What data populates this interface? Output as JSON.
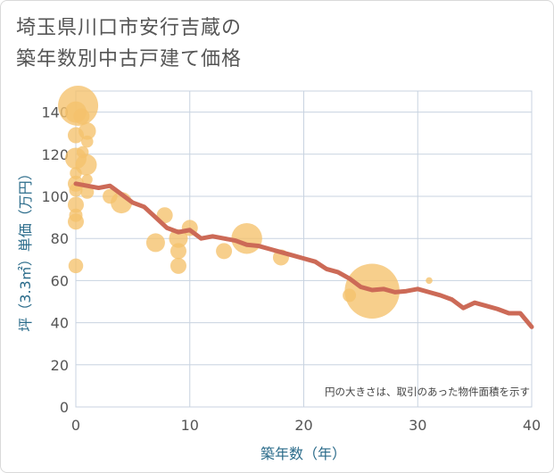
{
  "chart_data": {
    "type": "scatter",
    "title_lines": [
      "埼玉県川口市安行吉蔵の",
      "築年数別中古戸建て価格"
    ],
    "xlabel": "築年数（年）",
    "ylabel": "坪（3.3㎡）単価（万円）",
    "xlim": [
      0,
      40
    ],
    "ylim": [
      0,
      150
    ],
    "x_ticks": [
      0,
      10,
      20,
      30,
      40
    ],
    "y_ticks": [
      0,
      20,
      40,
      60,
      80,
      100,
      120,
      140
    ],
    "grid": true,
    "note": "円の大きさは、取引のあった物件面積を示す",
    "colors": {
      "bubble": "#f5c26b",
      "line": "#cc6a57",
      "grid": "#c8d3e0",
      "text": "#555555",
      "axis_title": "#2a6b8a"
    },
    "bubbles": [
      {
        "x": 0.2,
        "y": 143,
        "s": 3.0
      },
      {
        "x": 0.0,
        "y": 140,
        "s": 1.6
      },
      {
        "x": 0.5,
        "y": 138,
        "s": 1.2
      },
      {
        "x": 1.0,
        "y": 131,
        "s": 1.3
      },
      {
        "x": 0.0,
        "y": 129,
        "s": 1.2
      },
      {
        "x": 1.0,
        "y": 126,
        "s": 0.9
      },
      {
        "x": 0.0,
        "y": 118,
        "s": 1.6
      },
      {
        "x": 0.6,
        "y": 121,
        "s": 0.9
      },
      {
        "x": 0.9,
        "y": 115,
        "s": 1.6
      },
      {
        "x": 0.0,
        "y": 111,
        "s": 0.9
      },
      {
        "x": 0.0,
        "y": 106,
        "s": 1.2
      },
      {
        "x": 1.0,
        "y": 108,
        "s": 0.8
      },
      {
        "x": 0.0,
        "y": 103,
        "s": 1.0
      },
      {
        "x": 1.0,
        "y": 102,
        "s": 1.0
      },
      {
        "x": 0.0,
        "y": 96,
        "s": 1.2
      },
      {
        "x": 0.0,
        "y": 91,
        "s": 1.0
      },
      {
        "x": 0.0,
        "y": 88,
        "s": 1.2
      },
      {
        "x": 0.0,
        "y": 67,
        "s": 1.1
      },
      {
        "x": 3.0,
        "y": 100,
        "s": 1.1
      },
      {
        "x": 4.0,
        "y": 97,
        "s": 1.6
      },
      {
        "x": 7.0,
        "y": 78,
        "s": 1.4
      },
      {
        "x": 7.8,
        "y": 91,
        "s": 1.2
      },
      {
        "x": 9.0,
        "y": 80,
        "s": 1.4
      },
      {
        "x": 9.0,
        "y": 74,
        "s": 1.2
      },
      {
        "x": 9.0,
        "y": 67,
        "s": 1.2
      },
      {
        "x": 10.0,
        "y": 85,
        "s": 1.2
      },
      {
        "x": 13.0,
        "y": 74,
        "s": 1.2
      },
      {
        "x": 15.0,
        "y": 80,
        "s": 2.3
      },
      {
        "x": 18.0,
        "y": 71,
        "s": 1.2
      },
      {
        "x": 24.0,
        "y": 53,
        "s": 1.0
      },
      {
        "x": 26.0,
        "y": 55,
        "s": 4.1
      },
      {
        "x": 31.0,
        "y": 60,
        "s": 0.5
      }
    ],
    "line": {
      "x": [
        0,
        1,
        2,
        3,
        4,
        5,
        6,
        7,
        8,
        9,
        10,
        11,
        12,
        13,
        14,
        15,
        16,
        17,
        18,
        19,
        20,
        21,
        22,
        23,
        24,
        25,
        26,
        27,
        28,
        29,
        30,
        31,
        32,
        33,
        34,
        35,
        36,
        37,
        38,
        39,
        40
      ],
      "y": [
        106,
        105,
        104,
        105,
        101,
        97,
        95,
        90,
        85,
        83,
        84,
        80,
        81,
        80,
        79,
        77,
        76.5,
        75,
        73.5,
        72,
        70.5,
        69,
        65.5,
        64,
        61,
        57,
        55.5,
        56,
        54.5,
        55,
        56,
        54.5,
        53,
        51,
        47,
        49.5,
        48,
        46.5,
        44.5,
        44.5,
        38
      ]
    }
  }
}
